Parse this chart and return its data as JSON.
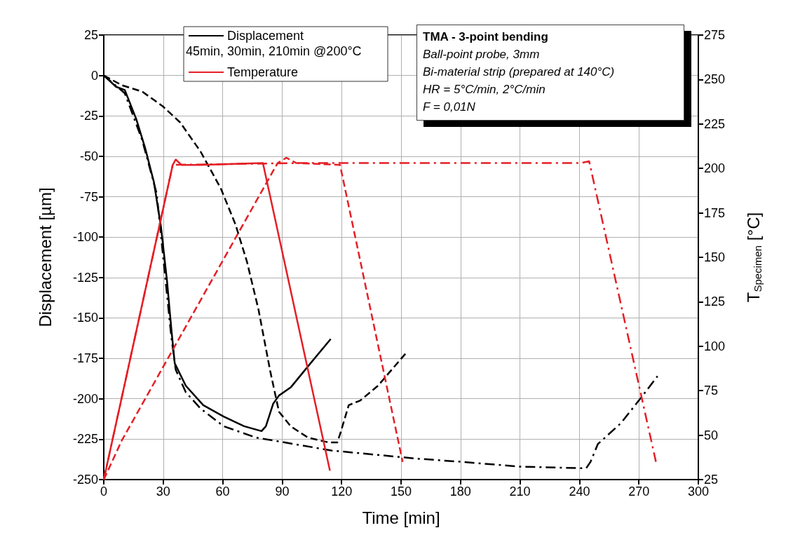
{
  "chart_data": {
    "type": "line",
    "title": "TMA - 3-point bending",
    "xlabel": "Time [min]",
    "ylabel": "Displacement [µm]",
    "y2label": "T$_{Specimen}$ [°C]",
    "annotations": [
      "45min, 30min, 210min @200°C",
      "Ball-point probe, 3mm",
      "Bi-material strip (prepared at 140°C)",
      "HR = 5°C/min, 2°C/min",
      "F = 0,01N"
    ],
    "xlim": [
      0,
      300
    ],
    "xticks": [
      0,
      30,
      60,
      90,
      120,
      150,
      180,
      210,
      240,
      270,
      300
    ],
    "ylim": [
      -250,
      25
    ],
    "yticks": [
      -250,
      -225,
      -200,
      -175,
      -150,
      -125,
      -100,
      -75,
      -50,
      -25,
      0,
      25
    ],
    "y2lim": [
      25,
      275
    ],
    "y2ticks": [
      25,
      50,
      75,
      100,
      125,
      150,
      175,
      200,
      225,
      250,
      275
    ],
    "grid": true,
    "legend": "top left",
    "marker": "none",
    "series": [
      {
        "name": "Displacement",
        "color": "#000000",
        "line_style": "solid",
        "x": [
          0,
          6.2,
          10.6,
          16.4,
          20.9,
          25.3,
          28.9,
          31.9,
          34.1,
          35.8,
          41.4,
          50.2,
          60.5,
          70.8,
          79.6,
          81.8,
          85.5,
          88.4,
          94.3,
          103,
          114.5
        ],
        "values": [
          0,
          -7,
          -9,
          -27,
          -45,
          -66,
          -94,
          -127,
          -157,
          -178,
          -192,
          -204,
          -211,
          -217,
          -220,
          -217,
          -203,
          -198,
          -193,
          -180,
          -163
        ]
      },
      {
        "color": "#000000",
        "line_style": "dashed",
        "x": [
          0,
          9.1,
          19.4,
          29.7,
          38.5,
          48.8,
          59.1,
          66.4,
          72.2,
          78.1,
          84,
          88.4,
          94.3,
          103,
          113.4,
          117.8,
          119.2,
          123.6,
          129.5,
          138.3,
          152.3
        ],
        "values": [
          0,
          -6,
          -10,
          -19,
          -29,
          -47,
          -70,
          -92,
          -115,
          -145,
          -183,
          -208,
          -217,
          -224,
          -227,
          -227,
          -222,
          -204,
          -201,
          -192,
          -172
        ]
      },
      {
        "color": "#000000",
        "line_style": "dashdot",
        "x": [
          0,
          10.6,
          19.4,
          26.7,
          31.1,
          34.1,
          36.3,
          41.4,
          48.8,
          60.5,
          76.7,
          91.3,
          114.8,
          157.7,
          180.4,
          209.7,
          243.4,
          245.6,
          249.3,
          261,
          271.3,
          279.4
        ],
        "values": [
          0,
          -11,
          -40,
          -73,
          -126,
          -162,
          -182,
          -196,
          -206,
          -217,
          -224,
          -227,
          -232,
          -237,
          -239,
          -242,
          -243,
          -239,
          -228,
          -215,
          -199,
          -186
        ]
      },
      {
        "name": "Temperature",
        "color": "#e41f26",
        "line_style": "solid",
        "axis": "y2",
        "x": [
          0,
          34.8,
          36.3,
          39.2,
          48.8,
          80.3,
          114.1
        ],
        "values": [
          25,
          202,
          205,
          202,
          202,
          203,
          30
        ]
      },
      {
        "color": "#e41f26",
        "line_style": "dashed",
        "axis": "y2",
        "x": [
          0,
          9.1,
          87.7,
          92.1,
          97.2,
          119.2,
          150.8
        ],
        "values": [
          25,
          47,
          203,
          206,
          203,
          202,
          35
        ]
      },
      {
        "color": "#e41f26",
        "line_style": "dashdot",
        "axis": "y2",
        "x": [
          0,
          34.8,
          97.2,
          240.5,
          244.9,
          278.6
        ],
        "values": [
          25,
          202,
          203,
          203,
          204,
          35
        ]
      }
    ]
  }
}
